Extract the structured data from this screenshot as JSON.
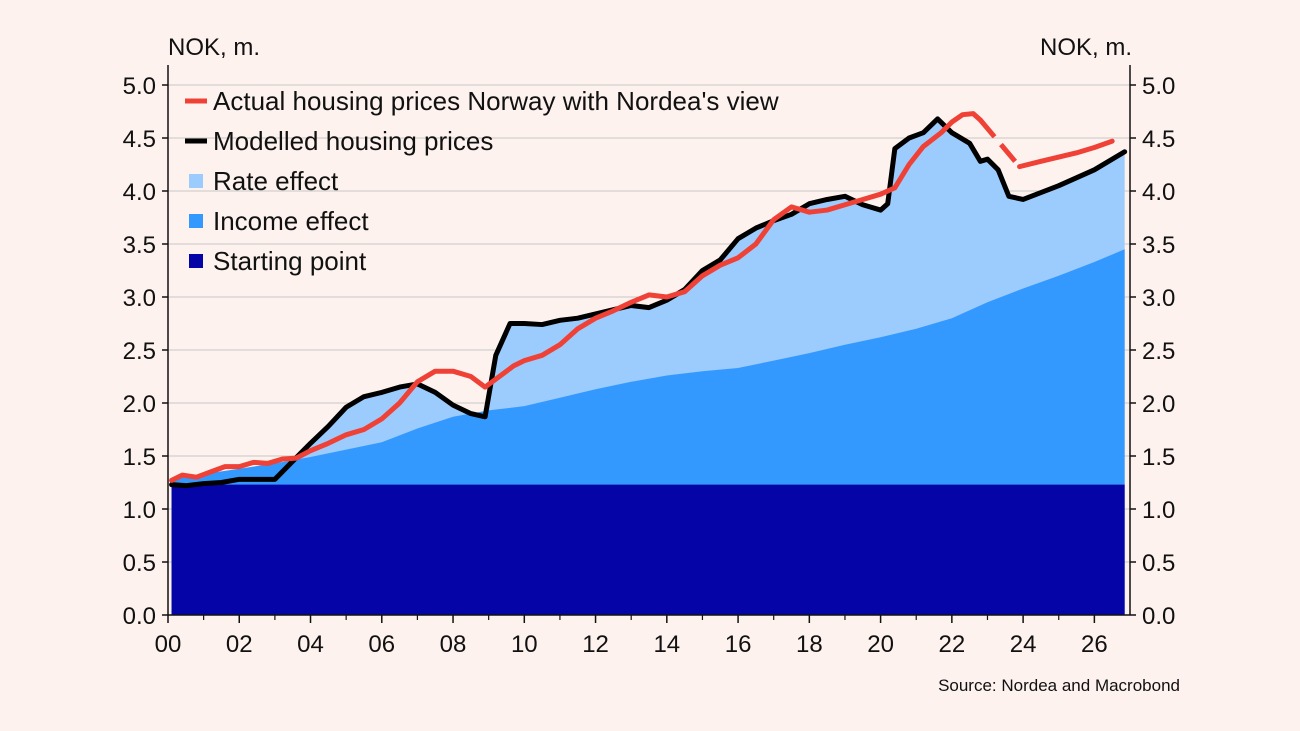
{
  "chart_data": {
    "type": "area",
    "y_unit_left": "NOK, m.",
    "y_unit_right": "NOK, m.",
    "source": "Source: Nordea and Macrobond",
    "xlim": [
      2000,
      2027
    ],
    "ylim": [
      0,
      5.0
    ],
    "x_ticks": [
      {
        "value": 2000,
        "label": "00"
      },
      {
        "value": 2002,
        "label": "02"
      },
      {
        "value": 2004,
        "label": "04"
      },
      {
        "value": 2006,
        "label": "06"
      },
      {
        "value": 2008,
        "label": "08"
      },
      {
        "value": 2010,
        "label": "10"
      },
      {
        "value": 2012,
        "label": "12"
      },
      {
        "value": 2014,
        "label": "14"
      },
      {
        "value": 2016,
        "label": "16"
      },
      {
        "value": 2018,
        "label": "18"
      },
      {
        "value": 2020,
        "label": "20"
      },
      {
        "value": 2022,
        "label": "22"
      },
      {
        "value": 2024,
        "label": "24"
      },
      {
        "value": 2026,
        "label": "26"
      }
    ],
    "y_ticks": [
      {
        "value": 0,
        "label": "0.0"
      },
      {
        "value": 0.5,
        "label": "0.5"
      },
      {
        "value": 1.0,
        "label": "1.0"
      },
      {
        "value": 1.5,
        "label": "1.5"
      },
      {
        "value": 2.0,
        "label": "2.0"
      },
      {
        "value": 2.5,
        "label": "2.5"
      },
      {
        "value": 3.0,
        "label": "3.0"
      },
      {
        "value": 3.5,
        "label": "3.5"
      },
      {
        "value": 4.0,
        "label": "4.0"
      },
      {
        "value": 4.5,
        "label": "4.5"
      },
      {
        "value": 5.0,
        "label": "5.0"
      }
    ],
    "grid": "horizontal",
    "legend_position": "top-left",
    "colors": {
      "actual": "#ef4136",
      "modelled": "#000000",
      "rate": "#9ccbfd",
      "income": "#3399ff",
      "start": "#0504a6",
      "grid": "#c8c8c8"
    },
    "legend": [
      {
        "key": "actual",
        "label": "Actual housing prices Norway with Nordea's view",
        "marker": "line"
      },
      {
        "key": "modelled",
        "label": "Modelled housing prices",
        "marker": "line"
      },
      {
        "key": "rate",
        "label": "Rate effect",
        "marker": "square"
      },
      {
        "key": "income",
        "label": "Income effect",
        "marker": "square"
      },
      {
        "key": "start",
        "label": "Starting point",
        "marker": "square"
      }
    ],
    "series": {
      "starting_point": {
        "x": [
          2000.1,
          2026.85
        ],
        "y": [
          1.23,
          1.23
        ]
      },
      "income_effect": {
        "x": [
          2000.1,
          2001,
          2002,
          2003,
          2004,
          2005,
          2006,
          2007,
          2008,
          2009,
          2010,
          2011,
          2012,
          2013,
          2014,
          2015,
          2016,
          2017,
          2018,
          2019,
          2020,
          2021,
          2022,
          2023,
          2024,
          2025,
          2026,
          2026.85
        ],
        "y": [
          1.28,
          1.33,
          1.38,
          1.43,
          1.49,
          1.56,
          1.63,
          1.76,
          1.87,
          1.93,
          1.97,
          2.05,
          2.13,
          2.2,
          2.26,
          2.3,
          2.33,
          2.4,
          2.47,
          2.55,
          2.62,
          2.7,
          2.8,
          2.95,
          3.08,
          3.2,
          3.33,
          3.45
        ]
      },
      "rate_effect": {
        "x": [
          2000.1,
          2000.5,
          2001,
          2001.5,
          2002,
          2002.5,
          2003,
          2003.5,
          2004,
          2004.5,
          2005,
          2005.5,
          2006,
          2006.5,
          2007,
          2007.5,
          2008,
          2008.5,
          2008.9,
          2009.2,
          2009.6,
          2010,
          2010.5,
          2011,
          2011.5,
          2012,
          2012.5,
          2013,
          2013.5,
          2014,
          2014.5,
          2015,
          2015.5,
          2016,
          2016.5,
          2017,
          2017.5,
          2018,
          2018.5,
          2019,
          2019.5,
          2020,
          2020.2,
          2020.4,
          2020.8,
          2021.2,
          2021.6,
          2022,
          2022.5,
          2022.8,
          2023,
          2023.3,
          2023.6,
          2024,
          2025,
          2026,
          2026.85
        ],
        "y": [
          1.23,
          1.22,
          1.24,
          1.25,
          1.28,
          1.28,
          1.28,
          1.45,
          1.62,
          1.78,
          1.96,
          2.06,
          2.1,
          2.15,
          2.18,
          2.1,
          1.98,
          1.9,
          1.87,
          2.45,
          2.75,
          2.75,
          2.74,
          2.78,
          2.8,
          2.84,
          2.88,
          2.92,
          2.9,
          2.97,
          3.07,
          3.25,
          3.35,
          3.55,
          3.65,
          3.72,
          3.78,
          3.88,
          3.92,
          3.95,
          3.87,
          3.82,
          3.88,
          4.4,
          4.5,
          4.55,
          4.68,
          4.55,
          4.45,
          4.28,
          4.3,
          4.2,
          3.95,
          3.92,
          4.05,
          4.2,
          4.37
        ]
      },
      "modelled": {
        "x": [
          2000.1,
          2000.5,
          2001,
          2001.5,
          2002,
          2002.5,
          2003,
          2003.5,
          2004,
          2004.5,
          2005,
          2005.5,
          2006,
          2006.5,
          2007,
          2007.5,
          2008,
          2008.5,
          2008.9,
          2009.2,
          2009.6,
          2010,
          2010.5,
          2011,
          2011.5,
          2012,
          2012.5,
          2013,
          2013.5,
          2014,
          2014.5,
          2015,
          2015.5,
          2016,
          2016.5,
          2017,
          2017.5,
          2018,
          2018.5,
          2019,
          2019.5,
          2020,
          2020.2,
          2020.4,
          2020.8,
          2021.2,
          2021.6,
          2022,
          2022.5,
          2022.8,
          2023,
          2023.3,
          2023.6,
          2024,
          2025,
          2026,
          2026.85
        ],
        "y": [
          1.23,
          1.22,
          1.24,
          1.25,
          1.28,
          1.28,
          1.28,
          1.45,
          1.62,
          1.78,
          1.96,
          2.06,
          2.1,
          2.15,
          2.18,
          2.1,
          1.98,
          1.9,
          1.87,
          2.45,
          2.75,
          2.75,
          2.74,
          2.78,
          2.8,
          2.84,
          2.88,
          2.92,
          2.9,
          2.97,
          3.07,
          3.25,
          3.35,
          3.55,
          3.65,
          3.72,
          3.78,
          3.88,
          3.92,
          3.95,
          3.87,
          3.82,
          3.88,
          4.4,
          4.5,
          4.55,
          4.68,
          4.55,
          4.45,
          4.28,
          4.3,
          4.2,
          3.95,
          3.92,
          4.05,
          4.2,
          4.37
        ]
      },
      "actual": {
        "x": [
          2000.1,
          2000.4,
          2000.8,
          2001.2,
          2001.6,
          2002,
          2002.4,
          2002.8,
          2003.2,
          2003.6,
          2004,
          2004.5,
          2005,
          2005.5,
          2006,
          2006.5,
          2007,
          2007.5,
          2008,
          2008.5,
          2008.9,
          2009.3,
          2009.7,
          2010,
          2010.5,
          2011,
          2011.5,
          2012,
          2012.5,
          2013,
          2013.5,
          2014,
          2014.5,
          2015,
          2015.5,
          2016,
          2016.5,
          2017,
          2017.5,
          2018,
          2018.5,
          2019,
          2019.5,
          2020,
          2020.4,
          2020.8,
          2021.2,
          2021.7,
          2022,
          2022.3,
          2022.6,
          2022.8
        ],
        "y": [
          1.27,
          1.32,
          1.3,
          1.35,
          1.4,
          1.4,
          1.44,
          1.43,
          1.47,
          1.48,
          1.55,
          1.62,
          1.7,
          1.75,
          1.85,
          2.0,
          2.2,
          2.3,
          2.3,
          2.25,
          2.15,
          2.25,
          2.35,
          2.4,
          2.45,
          2.55,
          2.7,
          2.8,
          2.87,
          2.95,
          3.02,
          3.0,
          3.05,
          3.2,
          3.3,
          3.37,
          3.5,
          3.73,
          3.85,
          3.8,
          3.82,
          3.87,
          3.92,
          3.97,
          4.03,
          4.25,
          4.42,
          4.55,
          4.65,
          4.72,
          4.73,
          4.67
        ]
      },
      "actual_forecast": {
        "x": [
          2023.9,
          2024.5,
          2025,
          2025.5,
          2026,
          2026.5
        ],
        "y": [
          4.23,
          4.28,
          4.32,
          4.36,
          4.41,
          4.47
        ]
      }
    }
  }
}
